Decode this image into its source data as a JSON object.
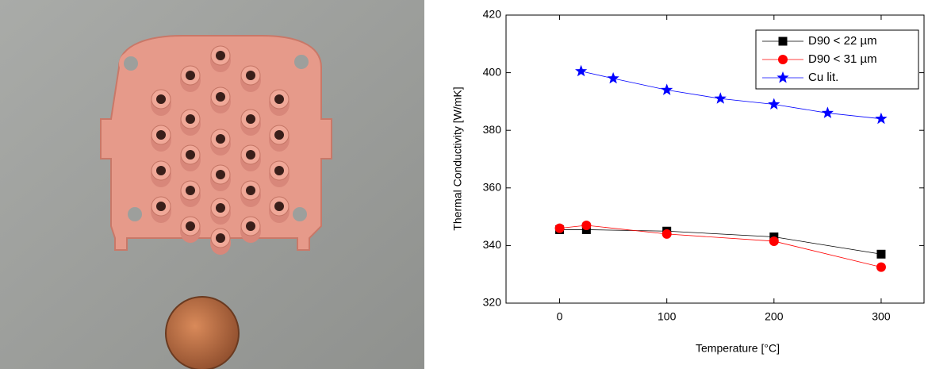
{
  "chart_data": {
    "type": "line",
    "x_label": "Temperature [°C]",
    "y_label": "Thermal Conductivity [W/mK]",
    "xlim": [
      -50,
      340
    ],
    "xticks": [
      0,
      100,
      200,
      300
    ],
    "ylim": [
      320,
      420
    ],
    "yticks": [
      320,
      340,
      360,
      380,
      400,
      420
    ],
    "legend": "top-right",
    "series": [
      {
        "name": "D90 < 22 µm",
        "color": "#000000",
        "marker": "square",
        "x": [
          0,
          25,
          100,
          200,
          300
        ],
        "values": [
          345.5,
          345.5,
          345,
          343,
          337
        ]
      },
      {
        "name": "D90 < 31 µm",
        "color": "#ff0000",
        "marker": "circle",
        "x": [
          0,
          25,
          100,
          200,
          300
        ],
        "values": [
          346,
          347,
          344,
          341.5,
          332.5
        ]
      },
      {
        "name": "Cu lit.",
        "color": "#0000ff",
        "marker": "star",
        "x": [
          20,
          50,
          100,
          150,
          200,
          250,
          300
        ],
        "values": [
          400.5,
          398,
          394,
          391,
          389,
          386,
          384
        ]
      }
    ]
  }
}
